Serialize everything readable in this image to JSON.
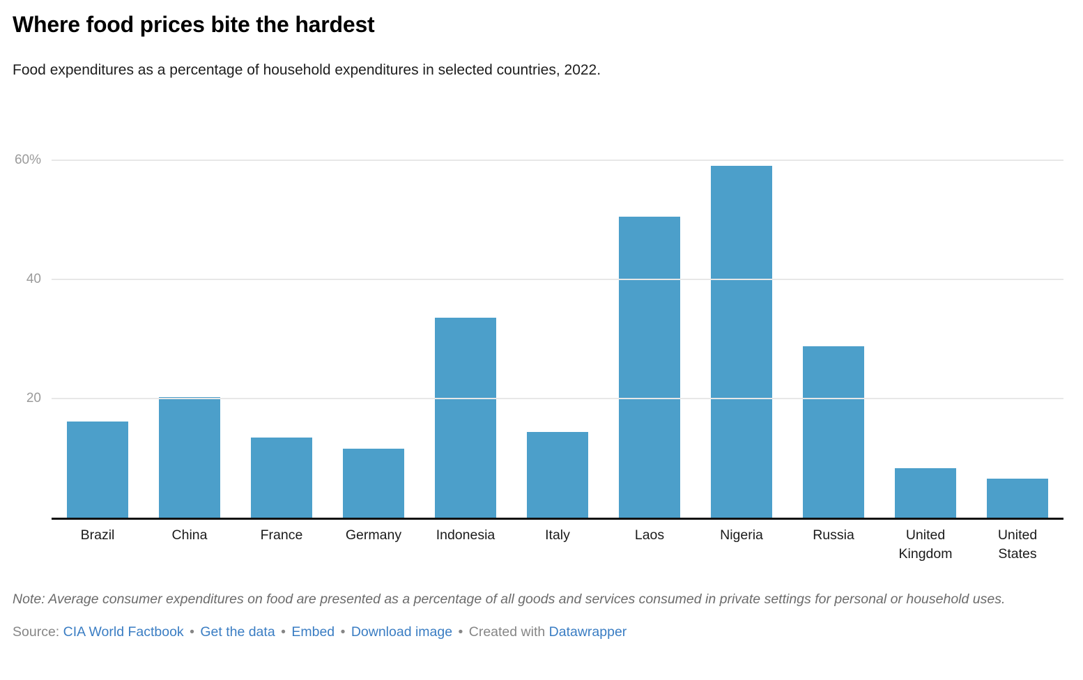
{
  "chart_data": {
    "type": "bar",
    "title": "Where food prices bite the hardest",
    "subtitle": "Food expenditures as a percentage of household expenditures in selected countries, 2022.",
    "categories": [
      "Brazil",
      "China",
      "France",
      "Germany",
      "Indonesia",
      "Italy",
      "Laos",
      "Nigeria",
      "Russia",
      "United Kingdom",
      "United States"
    ],
    "values": [
      16.1,
      20.2,
      13.4,
      11.6,
      33.6,
      14.4,
      50.5,
      59.1,
      28.8,
      8.3,
      6.5
    ],
    "xlabel": "",
    "ylabel": "",
    "ylim": [
      0,
      60
    ],
    "yticks": [
      {
        "value": 60,
        "label": "60%"
      },
      {
        "value": 40,
        "label": "40"
      },
      {
        "value": 20,
        "label": "20"
      }
    ],
    "grid": "horizontal",
    "legend": "none",
    "bar_color": "#4c9fca"
  },
  "footer": {
    "note": "Note: Average consumer expenditures on food are presented as a percentage of all goods and services consumed in private settings for personal or household uses.",
    "source_label": "Source:",
    "source_link": "CIA World Factbook",
    "links": [
      "Get the data",
      "Embed",
      "Download image"
    ],
    "bullet": "•",
    "created_with": "Created with",
    "brand": "Datawrapper"
  },
  "colors": {
    "bar": "#4c9fca",
    "link": "#3a7dc3",
    "axis": "#111111",
    "gridline": "#e7e7e7",
    "tick_label": "#9a9a9a"
  }
}
